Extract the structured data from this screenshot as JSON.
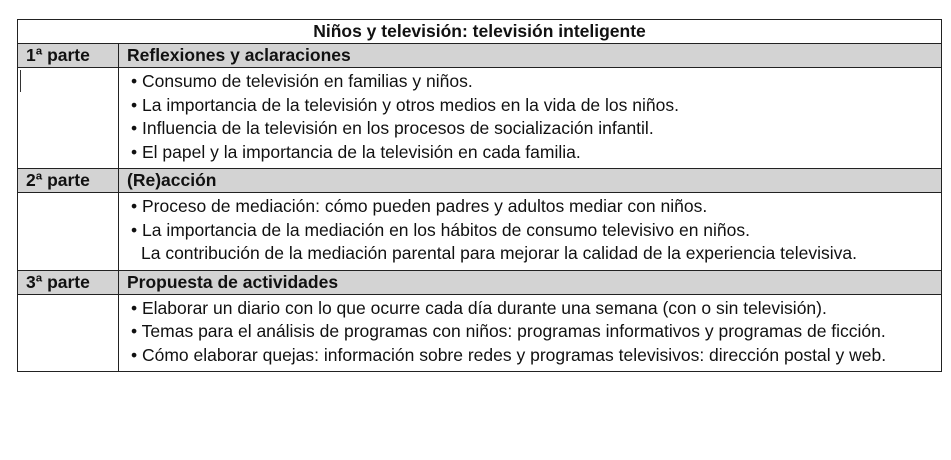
{
  "title": "Niños y televisión: televisión inteligente",
  "sections": [
    {
      "part": "1ª parte",
      "heading": "Reflexiones y aclaraciones",
      "items": [
        "• Consumo de televisión en familias y niños.",
        "• La importancia de la televisión y otros medios en la vida de los niños.",
        "• Influencia de la televisión en los procesos de socialización infantil.",
        "• El papel y la importancia de la televisión en cada familia."
      ]
    },
    {
      "part": "2ª parte",
      "heading": "(Re)acción",
      "items": [
        "• Proceso de mediación: cómo pueden padres y adultos mediar con niños.",
        "• La importancia de la mediación en los hábitos de consumo televisivo en niños.",
        "La contribución de la mediación parental para mejorar la calidad de la experiencia televisiva."
      ]
    },
    {
      "part": "3ª parte",
      "heading": "Propuesta de actividades",
      "items": [
        "• Elaborar un diario con lo que ocurre cada día durante una semana (con o sin televisión).",
        "• Temas para el análisis de programas con niños: programas informativos y programas de ficción.",
        "• Cómo elaborar quejas: información sobre redes y programas televisivos: dirección postal y web."
      ]
    }
  ]
}
